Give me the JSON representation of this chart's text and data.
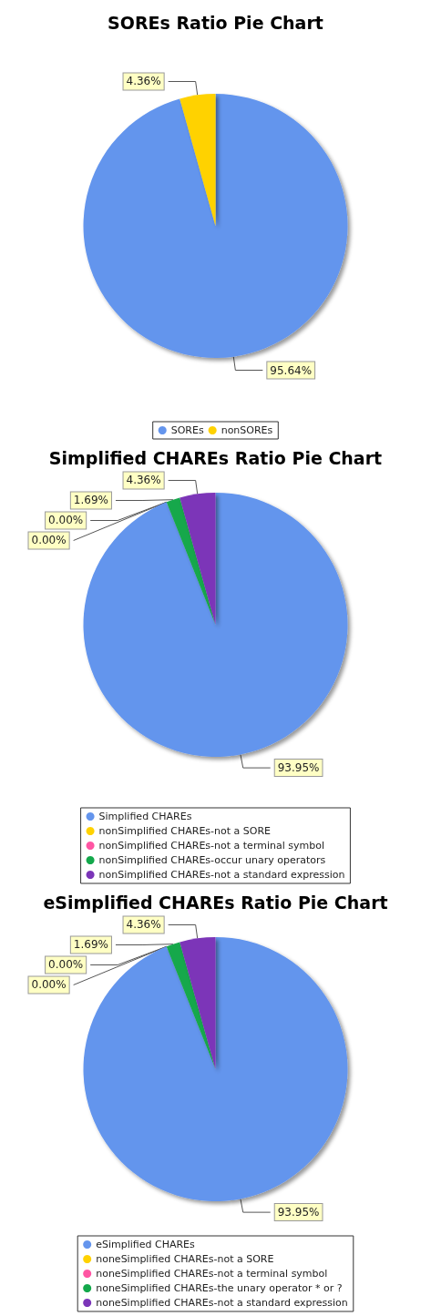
{
  "chart_data": [
    {
      "type": "pie",
      "title": "SOREs Ratio Pie Chart",
      "categories": [
        "SOREs",
        "nonSOREs"
      ],
      "values": [
        95.64,
        4.36
      ],
      "colors": [
        "#6495ed",
        "#ffd200"
      ],
      "value_labels": [
        "95.64%",
        "4.36%"
      ],
      "legend": "bottom"
    },
    {
      "type": "pie",
      "title": "Simplified CHAREs Ratio Pie Chart",
      "categories": [
        "Simplified CHAREs",
        "nonSimplified CHAREs-not a SORE",
        "nonSimplified CHAREs-not a terminal symbol",
        "nonSimplified CHAREs-occur unary operators",
        "nonSimplified CHAREs-not a standard expression"
      ],
      "values": [
        93.95,
        0,
        0,
        1.69,
        4.36
      ],
      "colors": [
        "#6495ed",
        "#ffd200",
        "#ff55a3",
        "#13a84b",
        "#7b35b8"
      ],
      "value_labels": [
        "93.95%",
        "0.00%",
        "0.00%",
        "1.69%",
        "4.36%"
      ],
      "legend": "bottom"
    },
    {
      "type": "pie",
      "title": "eSimplified CHAREs Ratio Pie Chart",
      "categories": [
        "eSimplified CHAREs",
        "noneSimplified CHAREs-not a SORE",
        "noneSimplified CHAREs-not a terminal symbol",
        "noneSimplified CHAREs-the unary operator * or ?",
        "noneSimplified CHAREs-not a standard expression"
      ],
      "values": [
        93.95,
        0,
        0,
        1.69,
        4.36
      ],
      "colors": [
        "#6495ed",
        "#ffd200",
        "#ff55a3",
        "#13a84b",
        "#7b35b8"
      ],
      "value_labels": [
        "93.95%",
        "0.00%",
        "0.00%",
        "1.69%",
        "4.36%"
      ],
      "legend": "bottom"
    }
  ]
}
